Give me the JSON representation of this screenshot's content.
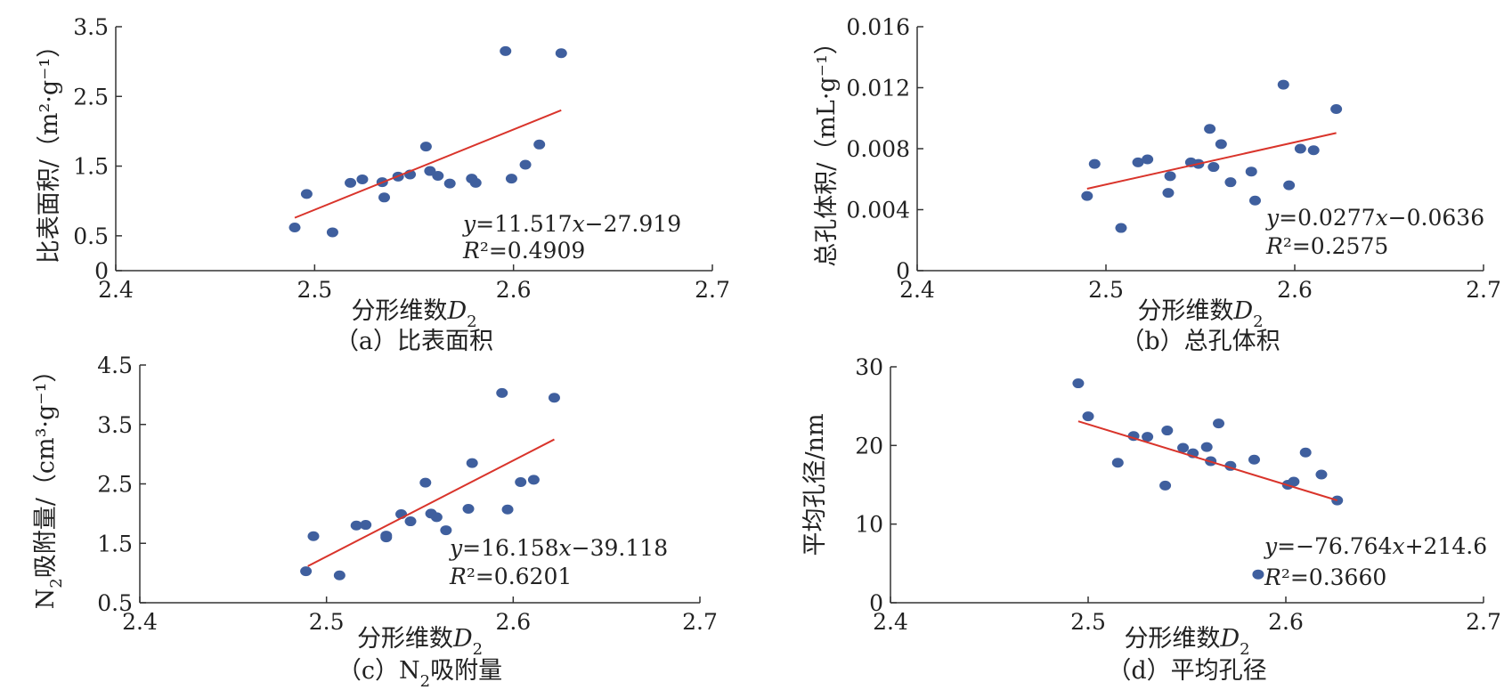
{
  "colors": {
    "point": "#3f5f9e",
    "fit_line": "#d9342b",
    "axis": "#333333"
  },
  "chart_data": [
    {
      "type": "scatter",
      "panel": "a",
      "caption": "（a）比表面积",
      "xlabel": "分形维数D",
      "xlabel_sub": "2",
      "ylabel": "比表面积/（m²·g⁻¹）",
      "xlim": [
        2.4,
        2.7
      ],
      "ylim": [
        0,
        3.5
      ],
      "xticks": [
        2.4,
        2.5,
        2.6,
        2.7
      ],
      "yticks": [
        0,
        0.5,
        1.5,
        2.5,
        3.5
      ],
      "xtick_labels": [
        "2.4",
        "2.5",
        "2.6",
        "2.7"
      ],
      "ytick_labels": [
        "0",
        "0.5",
        "1.5",
        "2.5",
        "3.5"
      ],
      "fit": {
        "slope": 11.517,
        "intercept": -27.919,
        "x_range": [
          2.49,
          2.624
        ]
      },
      "equation_text": "y=11.517x−27.919",
      "r2_text": "R²=0.4909",
      "points": [
        [
          2.49,
          0.62
        ],
        [
          2.496,
          1.1
        ],
        [
          2.509,
          0.55
        ],
        [
          2.518,
          1.26
        ],
        [
          2.524,
          1.31
        ],
        [
          2.534,
          1.27
        ],
        [
          2.535,
          1.05
        ],
        [
          2.542,
          1.35
        ],
        [
          2.548,
          1.38
        ],
        [
          2.556,
          1.78
        ],
        [
          2.558,
          1.43
        ],
        [
          2.562,
          1.36
        ],
        [
          2.568,
          1.25
        ],
        [
          2.579,
          1.32
        ],
        [
          2.581,
          1.26
        ],
        [
          2.596,
          3.15
        ],
        [
          2.599,
          1.32
        ],
        [
          2.606,
          1.52
        ],
        [
          2.613,
          1.81
        ],
        [
          2.624,
          3.12
        ]
      ]
    },
    {
      "type": "scatter",
      "panel": "b",
      "caption": "（b）总孔体积",
      "xlabel": "分形维数D",
      "xlabel_sub": "2",
      "ylabel": "总孔体积/（mL·g⁻¹）",
      "xlim": [
        2.4,
        2.7
      ],
      "ylim": [
        0,
        0.016
      ],
      "xticks": [
        2.4,
        2.5,
        2.6,
        2.7
      ],
      "yticks": [
        0,
        0.004,
        0.008,
        0.012,
        0.016
      ],
      "xtick_labels": [
        "2.4",
        "2.5",
        "2.6",
        "2.7"
      ],
      "ytick_labels": [
        "0",
        "0.004",
        "0.008",
        "0.012",
        "0.016"
      ],
      "fit": {
        "slope": 0.0277,
        "intercept": -0.0636,
        "x_range": [
          2.49,
          2.622
        ]
      },
      "equation_text": "y=0.0277x−0.0636",
      "r2_text": "R²=0.2575",
      "points": [
        [
          2.49,
          0.0049
        ],
        [
          2.494,
          0.007
        ],
        [
          2.508,
          0.0028
        ],
        [
          2.517,
          0.0071
        ],
        [
          2.522,
          0.0073
        ],
        [
          2.533,
          0.0051
        ],
        [
          2.534,
          0.0062
        ],
        [
          2.545,
          0.0071
        ],
        [
          2.549,
          0.007
        ],
        [
          2.555,
          0.0093
        ],
        [
          2.557,
          0.0068
        ],
        [
          2.561,
          0.0083
        ],
        [
          2.566,
          0.0058
        ],
        [
          2.577,
          0.0065
        ],
        [
          2.579,
          0.0046
        ],
        [
          2.594,
          0.0122
        ],
        [
          2.597,
          0.0056
        ],
        [
          2.603,
          0.008
        ],
        [
          2.61,
          0.0079
        ],
        [
          2.622,
          0.0106
        ]
      ]
    },
    {
      "type": "scatter",
      "panel": "c",
      "caption": "（c）N吸附量",
      "caption_sub": "2",
      "xlabel": "分形维数D",
      "xlabel_sub": "2",
      "ylabel": "N吸附量/（cm³·g⁻¹）",
      "ylabel_sub": "2",
      "xlim": [
        2.4,
        2.7
      ],
      "ylim": [
        0.5,
        4.5
      ],
      "xticks": [
        2.4,
        2.5,
        2.6,
        2.7
      ],
      "yticks": [
        0.5,
        1.5,
        2.5,
        3.5,
        4.5
      ],
      "xtick_labels": [
        "2.4",
        "2.5",
        "2.6",
        "2.7"
      ],
      "ytick_labels": [
        "0.5",
        "1.5",
        "2.5",
        "3.5",
        "4.5"
      ],
      "fit": {
        "slope": 16.158,
        "intercept": -39.118,
        "x_range": [
          2.49,
          2.622
        ]
      },
      "equation_text": "y=16.158x−39.118",
      "r2_text": "R²=0.6201",
      "points": [
        [
          2.489,
          1.03
        ],
        [
          2.493,
          1.62
        ],
        [
          2.507,
          0.96
        ],
        [
          2.516,
          1.8
        ],
        [
          2.521,
          1.81
        ],
        [
          2.532,
          1.6
        ],
        [
          2.532,
          1.63
        ],
        [
          2.54,
          1.99
        ],
        [
          2.545,
          1.87
        ],
        [
          2.553,
          2.52
        ],
        [
          2.556,
          2.0
        ],
        [
          2.559,
          1.94
        ],
        [
          2.564,
          1.72
        ],
        [
          2.576,
          2.08
        ],
        [
          2.578,
          2.85
        ],
        [
          2.594,
          4.03
        ],
        [
          2.597,
          2.07
        ],
        [
          2.604,
          2.53
        ],
        [
          2.611,
          2.57
        ],
        [
          2.622,
          3.95
        ]
      ]
    },
    {
      "type": "scatter",
      "panel": "d",
      "caption": "（d）平均孔径",
      "xlabel": "分形维数D",
      "xlabel_sub": "2",
      "ylabel": "平均孔径/nm",
      "xlim": [
        2.4,
        2.7
      ],
      "ylim": [
        0,
        30
      ],
      "xticks": [
        2.4,
        2.5,
        2.6,
        2.7
      ],
      "yticks": [
        0,
        10,
        20,
        30
      ],
      "xtick_labels": [
        "2.4",
        "2.5",
        "2.6",
        "2.7"
      ],
      "ytick_labels": [
        "0",
        "10",
        "20",
        "30"
      ],
      "fit": {
        "slope": -76.764,
        "intercept": 214.6,
        "x_range": [
          2.495,
          2.626
        ]
      },
      "equation_text": "y=−76.764x+214.6",
      "r2_text": "R²=0.3660",
      "points": [
        [
          2.495,
          27.9
        ],
        [
          2.5,
          23.7
        ],
        [
          2.515,
          17.8
        ],
        [
          2.523,
          21.2
        ],
        [
          2.53,
          21.1
        ],
        [
          2.539,
          14.9
        ],
        [
          2.54,
          21.9
        ],
        [
          2.548,
          19.7
        ],
        [
          2.553,
          19.0
        ],
        [
          2.56,
          19.8
        ],
        [
          2.562,
          18.0
        ],
        [
          2.566,
          22.8
        ],
        [
          2.572,
          17.4
        ],
        [
          2.584,
          18.2
        ],
        [
          2.586,
          3.6
        ],
        [
          2.601,
          15.0
        ],
        [
          2.604,
          15.4
        ],
        [
          2.61,
          19.1
        ],
        [
          2.618,
          16.3
        ],
        [
          2.626,
          13.0
        ]
      ]
    }
  ]
}
